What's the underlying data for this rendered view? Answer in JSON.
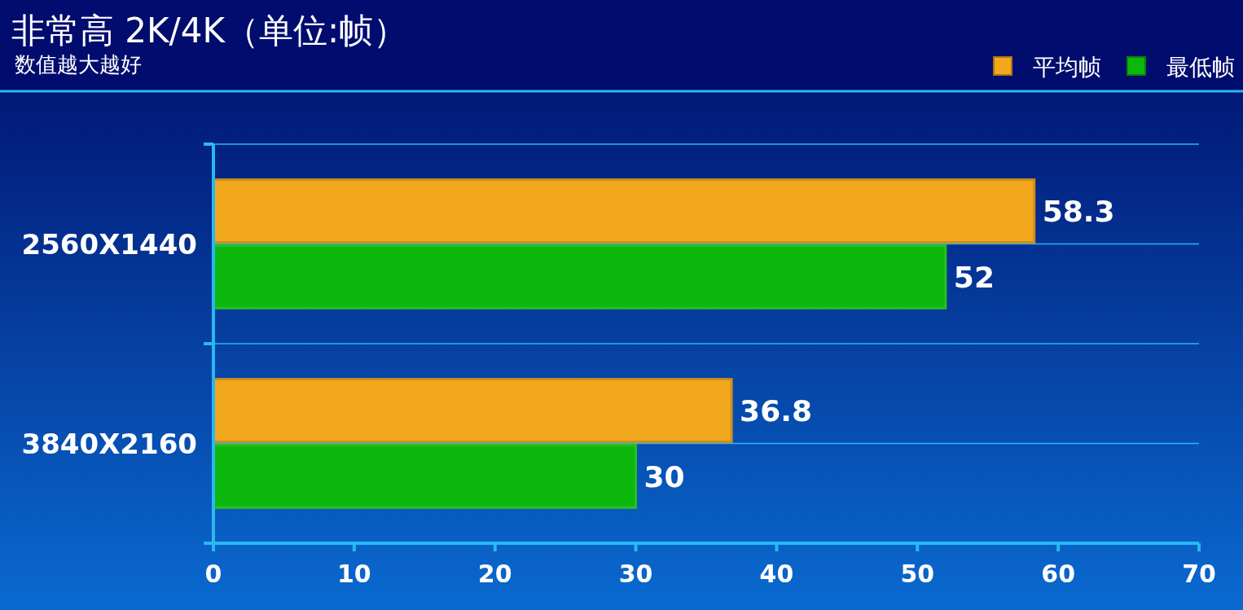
{
  "chart_data": {
    "type": "bar",
    "orientation": "horizontal",
    "title": "非常高 2K/4K（单位:帧）",
    "subtitle": "数值越大越好",
    "categories": [
      "2560X1440",
      "3840X2160"
    ],
    "series": [
      {
        "name": "平均帧",
        "color": "#f2a81c",
        "values": [
          58.3,
          36.8
        ]
      },
      {
        "name": "最低帧",
        "color": "#0cb80c",
        "values": [
          52,
          30
        ]
      }
    ],
    "xlim": [
      0,
      70
    ],
    "xticks": [
      0,
      10,
      20,
      30,
      40,
      50,
      60,
      70
    ],
    "data_labels": true,
    "legend": "top right",
    "grid": "y"
  }
}
